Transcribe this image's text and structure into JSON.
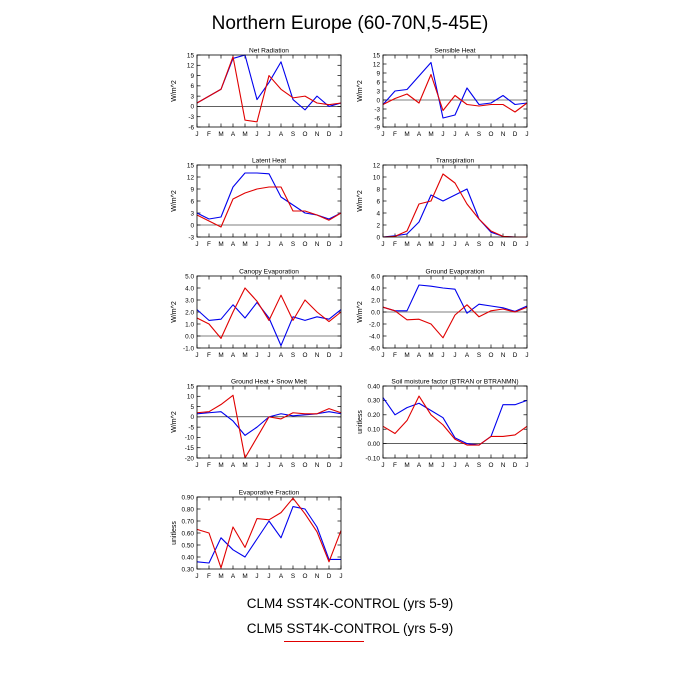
{
  "figure": {
    "title": "Northern Europe (60-70N,5-45E)",
    "months": [
      "J",
      "F",
      "M",
      "A",
      "M",
      "J",
      "J",
      "A",
      "S",
      "O",
      "N",
      "D",
      "J"
    ],
    "colors": {
      "clm4": "#0000ee",
      "clm5": "#e00000"
    }
  },
  "legend": {
    "entries": [
      {
        "label": "CLM4 SST4K-CONTROL (yrs 5-9)",
        "color": "#0000ee"
      },
      {
        "label": "CLM5 SST4K-CONTROL (yrs 5-9)",
        "color": "#e00000"
      }
    ]
  },
  "chart_data": [
    {
      "type": "line",
      "title": "Net Radiation",
      "ylabel": "W/m^2",
      "ylim": [
        -6,
        15
      ],
      "yticks": [
        15,
        12,
        9,
        6,
        3,
        0,
        -3,
        -6
      ],
      "ytick_labels": [
        "15",
        "12",
        "9",
        "6",
        "3",
        "0",
        "-3",
        "-6"
      ],
      "series": [
        {
          "color": "#0000ee",
          "values": [
            1,
            3,
            5,
            14,
            15,
            2,
            7,
            13,
            2,
            -1,
            3,
            0,
            1
          ]
        },
        {
          "color": "#e00000",
          "values": [
            1,
            3,
            5,
            14.5,
            -4,
            -4.5,
            9,
            5,
            2.5,
            3,
            1,
            0.5,
            1
          ]
        }
      ]
    },
    {
      "type": "line",
      "title": "Sensible Heat",
      "ylabel": "W/m^2",
      "ylim": [
        -9,
        15
      ],
      "yticks": [
        15,
        12,
        9,
        6,
        3,
        0,
        -3,
        -6,
        -9
      ],
      "ytick_labels": [
        "15",
        "12",
        "9",
        "6",
        "3",
        "0",
        "-3",
        "-6",
        "-9"
      ],
      "series": [
        {
          "color": "#0000ee",
          "values": [
            -1.5,
            3,
            3.5,
            8,
            12.5,
            -6,
            -5,
            4,
            -1.5,
            -1,
            1.5,
            -1.5,
            -1
          ]
        },
        {
          "color": "#e00000",
          "values": [
            -1.5,
            0.5,
            2,
            -1,
            8.5,
            -3.5,
            1.5,
            -1.5,
            -2,
            -1.5,
            -1.5,
            -4,
            -1
          ]
        }
      ]
    },
    {
      "type": "line",
      "title": "Latent Heat",
      "ylabel": "W/m^2",
      "ylim": [
        -3,
        15
      ],
      "yticks": [
        15,
        12,
        9,
        6,
        3,
        0,
        -3
      ],
      "ytick_labels": [
        "15",
        "12",
        "9",
        "6",
        "3",
        "0",
        "-3"
      ],
      "series": [
        {
          "color": "#0000ee",
          "values": [
            3,
            1.5,
            2,
            9.5,
            13,
            13,
            12.8,
            7,
            5,
            3,
            2.5,
            1.5,
            3
          ]
        },
        {
          "color": "#e00000",
          "values": [
            2.5,
            1,
            -0.5,
            6.5,
            8,
            9,
            9.5,
            9.5,
            3.5,
            3.5,
            2.5,
            1.2,
            3
          ]
        }
      ]
    },
    {
      "type": "line",
      "title": "Transpiration",
      "ylabel": "W/m^2",
      "ylim": [
        0,
        12
      ],
      "yticks": [
        12,
        10,
        8,
        6,
        4,
        2,
        0
      ],
      "ytick_labels": [
        "12",
        "10",
        "8",
        "6",
        "4",
        "2",
        "0"
      ],
      "series": [
        {
          "color": "#0000ee",
          "values": [
            0,
            0.2,
            0.5,
            2.5,
            7,
            6,
            7,
            8,
            3,
            0.8,
            0.1,
            0,
            0
          ]
        },
        {
          "color": "#e00000",
          "values": [
            0,
            0.1,
            1,
            5.5,
            6,
            10.5,
            9,
            5.5,
            3,
            1,
            0.1,
            0,
            0
          ]
        }
      ]
    },
    {
      "type": "line",
      "title": "Canopy Evaporation",
      "ylabel": "W/m^2",
      "ylim": [
        -1,
        5
      ],
      "yticks": [
        5,
        4,
        3,
        2,
        1,
        0,
        -1
      ],
      "ytick_labels": [
        "5.0",
        "4.0",
        "3.0",
        "2.0",
        "1.0",
        "0.0",
        "-1.0"
      ],
      "series": [
        {
          "color": "#0000ee",
          "values": [
            2.2,
            1.3,
            1.4,
            2.6,
            1.5,
            2.8,
            1.5,
            -0.8,
            1.6,
            1.3,
            1.6,
            1.4,
            2.2
          ]
        },
        {
          "color": "#e00000",
          "values": [
            1.5,
            1,
            -0.2,
            2,
            4,
            2.9,
            1.3,
            3.4,
            1.3,
            3,
            2,
            1.2,
            2
          ]
        }
      ]
    },
    {
      "type": "line",
      "title": "Ground Evaporation",
      "ylabel": "W/m^2",
      "ylim": [
        -6,
        6
      ],
      "yticks": [
        6,
        4,
        2,
        0,
        -2,
        -4,
        -6
      ],
      "ytick_labels": [
        "6.0",
        "4.0",
        "2.0",
        "0.0",
        "-2.0",
        "-4.0",
        "-6.0"
      ],
      "series": [
        {
          "color": "#0000ee",
          "values": [
            0.8,
            0.2,
            0.2,
            4.5,
            4.3,
            4,
            3.8,
            -0.2,
            1.3,
            1,
            0.7,
            0.1,
            1
          ]
        },
        {
          "color": "#e00000",
          "values": [
            0.8,
            0.2,
            -1.3,
            -1.2,
            -2,
            -4.3,
            -0.5,
            1.2,
            -0.8,
            0.2,
            0.5,
            0,
            0.8
          ]
        }
      ]
    },
    {
      "type": "line",
      "title": "Ground Heat + Snow Melt",
      "ylabel": "W/m^2",
      "ylim": [
        -20,
        15
      ],
      "yticks": [
        15,
        10,
        5,
        0,
        -5,
        -10,
        -15,
        -20
      ],
      "ytick_labels": [
        "15",
        "10",
        "5",
        "0",
        "-5",
        "-10",
        "-15",
        "-20"
      ],
      "series": [
        {
          "color": "#0000ee",
          "values": [
            1.5,
            2,
            2.5,
            -2,
            -9,
            -5,
            0,
            1.5,
            0.5,
            1,
            1.5,
            2.5,
            1.5
          ]
        },
        {
          "color": "#e00000",
          "values": [
            2,
            2.5,
            6,
            10.5,
            -20,
            -10,
            0,
            -1,
            2,
            1.5,
            1.5,
            4,
            2
          ]
        }
      ]
    },
    {
      "type": "line",
      "title": "Soil moisture factor (BTRAN or BTRANMN)",
      "ylabel": "unitless",
      "ylim": [
        -0.1,
        0.4
      ],
      "yticks": [
        0.4,
        0.3,
        0.2,
        0.1,
        0.0,
        -0.1
      ],
      "ytick_labels": [
        "0.40",
        "0.30",
        "0.20",
        "0.10",
        "0.00",
        "-0.10"
      ],
      "series": [
        {
          "color": "#0000ee",
          "values": [
            0.32,
            0.2,
            0.25,
            0.28,
            0.23,
            0.18,
            0.04,
            0.0,
            -0.01,
            0.05,
            0.27,
            0.27,
            0.3
          ]
        },
        {
          "color": "#e00000",
          "values": [
            0.12,
            0.07,
            0.16,
            0.33,
            0.2,
            0.13,
            0.03,
            -0.01,
            -0.01,
            0.05,
            0.05,
            0.06,
            0.12
          ]
        }
      ]
    },
    {
      "type": "line",
      "title": "Evaporative Fraction",
      "ylabel": "unitless",
      "ylim": [
        0.3,
        0.9
      ],
      "yticks": [
        0.9,
        0.8,
        0.7,
        0.6,
        0.5,
        0.4,
        0.3
      ],
      "ytick_labels": [
        "0.90",
        "0.80",
        "0.70",
        "0.60",
        "0.50",
        "0.40",
        "0.30"
      ],
      "series": [
        {
          "color": "#0000ee",
          "values": [
            0.36,
            0.35,
            0.56,
            0.46,
            0.4,
            0.55,
            0.7,
            0.56,
            0.82,
            0.8,
            0.65,
            0.38,
            0.38
          ]
        },
        {
          "color": "#e00000",
          "values": [
            0.63,
            0.6,
            0.31,
            0.65,
            0.48,
            0.72,
            0.71,
            0.77,
            0.89,
            0.76,
            0.61,
            0.36,
            0.62
          ]
        }
      ]
    }
  ]
}
